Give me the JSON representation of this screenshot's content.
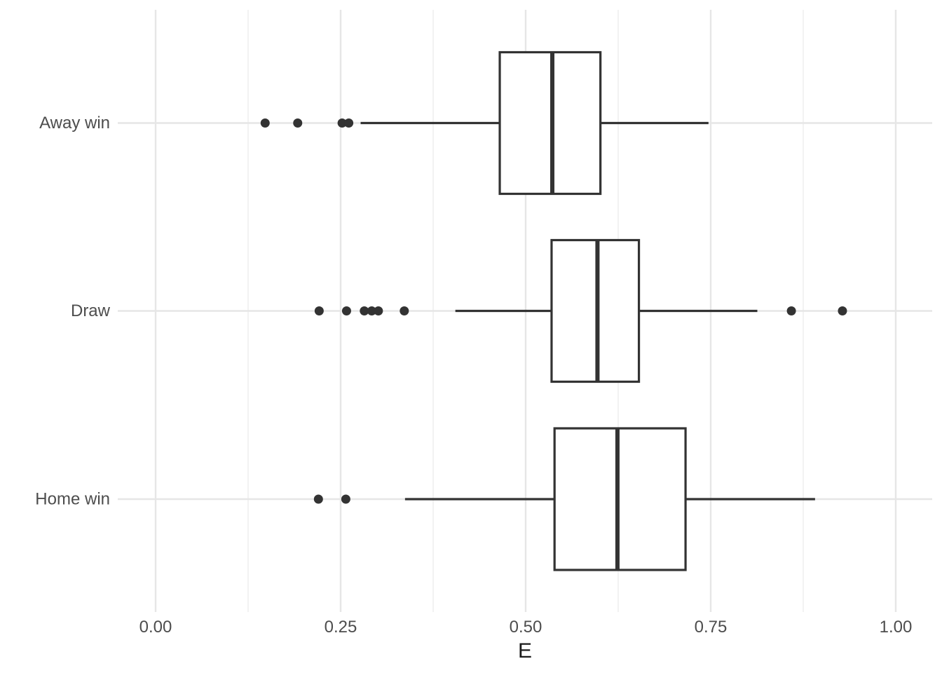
{
  "chart_data": {
    "type": "boxplot",
    "orientation": "horizontal",
    "title": "",
    "xlabel": "E",
    "ylabel": "",
    "xlim": [
      -0.05,
      1.05
    ],
    "grid": "on",
    "legend": "none",
    "x_ticks": {
      "values": [
        0.0,
        0.25,
        0.5,
        0.75,
        1.0
      ],
      "labels": [
        "0.00",
        "0.25",
        "0.50",
        "0.75",
        "1.00"
      ]
    },
    "x_minor_ticks": [
      0.125,
      0.375,
      0.625,
      0.875
    ],
    "categories": [
      "Away win",
      "Draw",
      "Home win"
    ],
    "series": [
      {
        "category": "Away win",
        "whisker_low": 0.277,
        "q1": 0.465,
        "median": 0.536,
        "q3": 0.601,
        "whisker_high": 0.747,
        "outliers": [
          0.148,
          0.192,
          0.252,
          0.261
        ]
      },
      {
        "category": "Draw",
        "whisker_low": 0.405,
        "q1": 0.535,
        "median": 0.597,
        "q3": 0.653,
        "whisker_high": 0.813,
        "outliers": [
          0.221,
          0.258,
          0.282,
          0.292,
          0.301,
          0.336,
          0.859,
          0.928
        ]
      },
      {
        "category": "Home win",
        "whisker_low": 0.337,
        "q1": 0.539,
        "median": 0.624,
        "q3": 0.716,
        "whisker_high": 0.891,
        "outliers": [
          0.22,
          0.257
        ]
      }
    ],
    "style": {
      "background": "#ffffff",
      "box_fill": "#ffffff",
      "stroke": "#333333",
      "grid_major": "#e6e6e6",
      "grid_minor": "#f0f0f0",
      "axis_text": "#4d4d4d",
      "axis_title": "#1a1a1a"
    }
  }
}
